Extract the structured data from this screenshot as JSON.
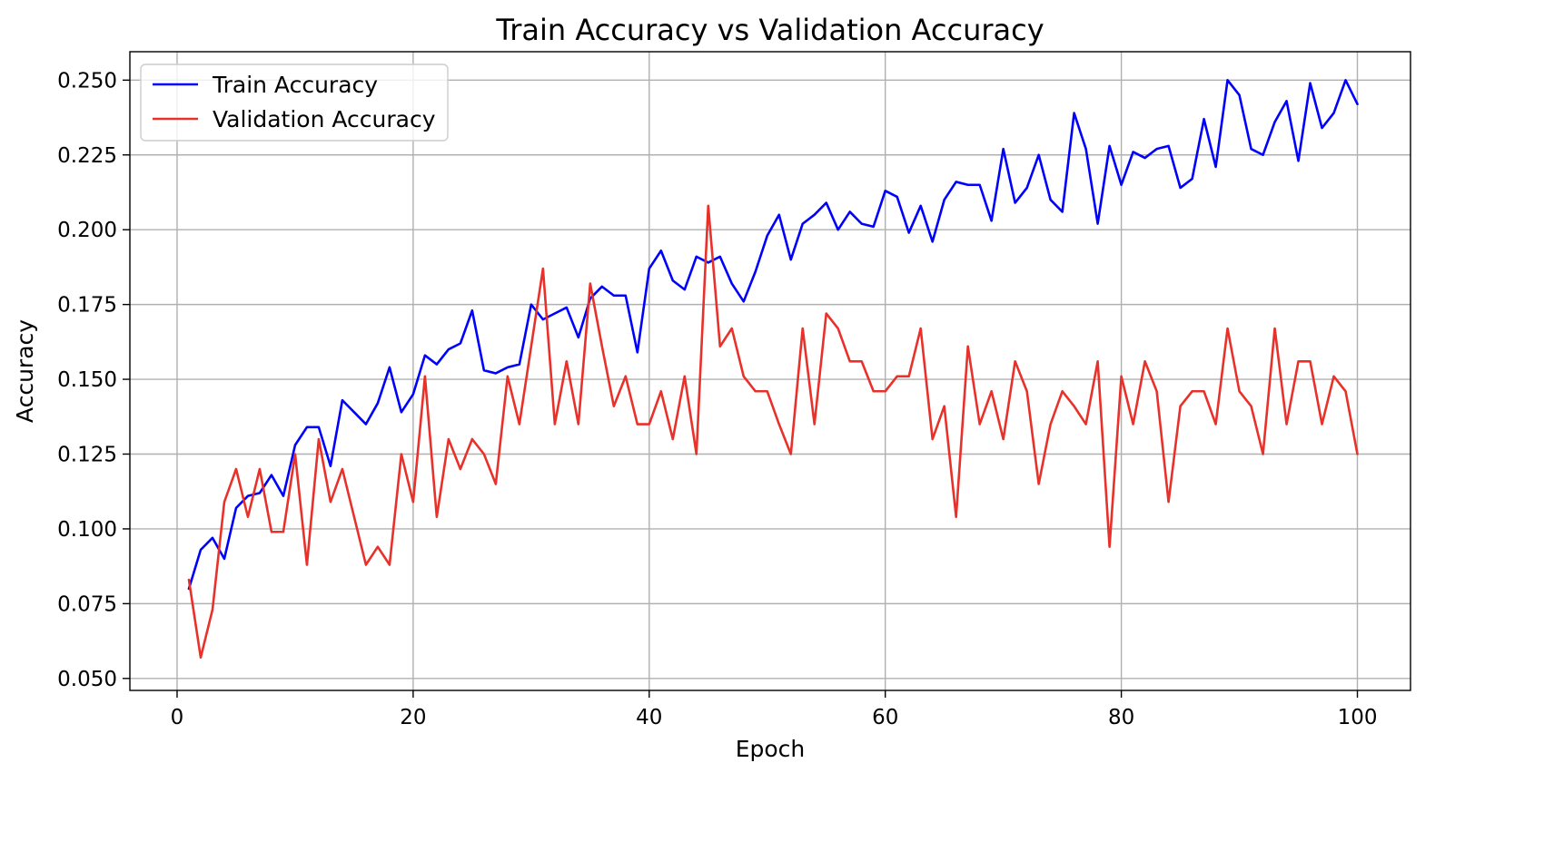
{
  "chart_data": {
    "type": "line",
    "title": "Train Accuracy vs Validation Accuracy",
    "xlabel": "Epoch",
    "ylabel": "Accuracy",
    "xlim": [
      -4,
      104.5
    ],
    "ylim": [
      0.046,
      0.2595
    ],
    "x_ticks": [
      0,
      20,
      40,
      60,
      80,
      100
    ],
    "x_tick_labels": [
      "0",
      "20",
      "40",
      "60",
      "80",
      "100"
    ],
    "y_ticks": [
      0.05,
      0.075,
      0.1,
      0.125,
      0.15,
      0.175,
      0.2,
      0.225,
      0.25
    ],
    "y_tick_labels": [
      "0.050",
      "0.075",
      "0.100",
      "0.125",
      "0.150",
      "0.175",
      "0.200",
      "0.225",
      "0.250"
    ],
    "grid": true,
    "legend_position": "top-left",
    "x": [
      1,
      2,
      3,
      4,
      5,
      6,
      7,
      8,
      9,
      10,
      11,
      12,
      13,
      14,
      15,
      16,
      17,
      18,
      19,
      20,
      21,
      22,
      23,
      24,
      25,
      26,
      27,
      28,
      29,
      30,
      31,
      32,
      33,
      34,
      35,
      36,
      37,
      38,
      39,
      40,
      41,
      42,
      43,
      44,
      45,
      46,
      47,
      48,
      49,
      50,
      51,
      52,
      53,
      54,
      55,
      56,
      57,
      58,
      59,
      60,
      61,
      62,
      63,
      64,
      65,
      66,
      67,
      68,
      69,
      70,
      71,
      72,
      73,
      74,
      75,
      76,
      77,
      78,
      79,
      80,
      81,
      82,
      83,
      84,
      85,
      86,
      87,
      88,
      89,
      90,
      91,
      92,
      93,
      94,
      95,
      96,
      97,
      98,
      99,
      100
    ],
    "series": [
      {
        "name": "Train Accuracy",
        "color": "#0000ff",
        "values": [
          0.08,
          0.093,
          0.097,
          0.09,
          0.107,
          0.111,
          0.112,
          0.118,
          0.111,
          0.128,
          0.134,
          0.134,
          0.121,
          0.143,
          0.139,
          0.135,
          0.142,
          0.154,
          0.139,
          0.145,
          0.158,
          0.155,
          0.16,
          0.162,
          0.173,
          0.153,
          0.152,
          0.154,
          0.155,
          0.175,
          0.17,
          0.172,
          0.174,
          0.164,
          0.177,
          0.181,
          0.178,
          0.178,
          0.159,
          0.187,
          0.193,
          0.183,
          0.18,
          0.191,
          0.189,
          0.191,
          0.182,
          0.176,
          0.186,
          0.198,
          0.205,
          0.19,
          0.202,
          0.205,
          0.209,
          0.2,
          0.206,
          0.202,
          0.201,
          0.213,
          0.211,
          0.199,
          0.208,
          0.196,
          0.21,
          0.216,
          0.215,
          0.215,
          0.203,
          0.227,
          0.209,
          0.214,
          0.225,
          0.21,
          0.206,
          0.239,
          0.227,
          0.202,
          0.228,
          0.215,
          0.226,
          0.224,
          0.227,
          0.228,
          0.214,
          0.217,
          0.237,
          0.221,
          0.25,
          0.245,
          0.227,
          0.225,
          0.236,
          0.243,
          0.223,
          0.249,
          0.234,
          0.239,
          0.25,
          0.242
        ]
      },
      {
        "name": "Validation Accuracy",
        "color": "#e8312a",
        "values": [
          0.083,
          0.057,
          0.073,
          0.109,
          0.12,
          0.104,
          0.12,
          0.099,
          0.099,
          0.125,
          0.088,
          0.13,
          0.109,
          0.12,
          0.104,
          0.088,
          0.094,
          0.088,
          0.125,
          0.109,
          0.151,
          0.104,
          0.13,
          0.12,
          0.13,
          0.125,
          0.115,
          0.151,
          0.135,
          0.161,
          0.187,
          0.135,
          0.156,
          0.135,
          0.182,
          0.161,
          0.141,
          0.151,
          0.135,
          0.135,
          0.146,
          0.13,
          0.151,
          0.125,
          0.208,
          0.161,
          0.167,
          0.151,
          0.146,
          0.146,
          0.135,
          0.125,
          0.167,
          0.135,
          0.172,
          0.167,
          0.156,
          0.156,
          0.146,
          0.146,
          0.151,
          0.151,
          0.167,
          0.13,
          0.141,
          0.104,
          0.161,
          0.135,
          0.146,
          0.13,
          0.156,
          0.146,
          0.115,
          0.135,
          0.146,
          0.141,
          0.135,
          0.156,
          0.094,
          0.151,
          0.135,
          0.156,
          0.146,
          0.109,
          0.141,
          0.146,
          0.146,
          0.135,
          0.167,
          0.146,
          0.141,
          0.125,
          0.167,
          0.135,
          0.156,
          0.156,
          0.135,
          0.151,
          0.146,
          0.125
        ]
      }
    ]
  }
}
